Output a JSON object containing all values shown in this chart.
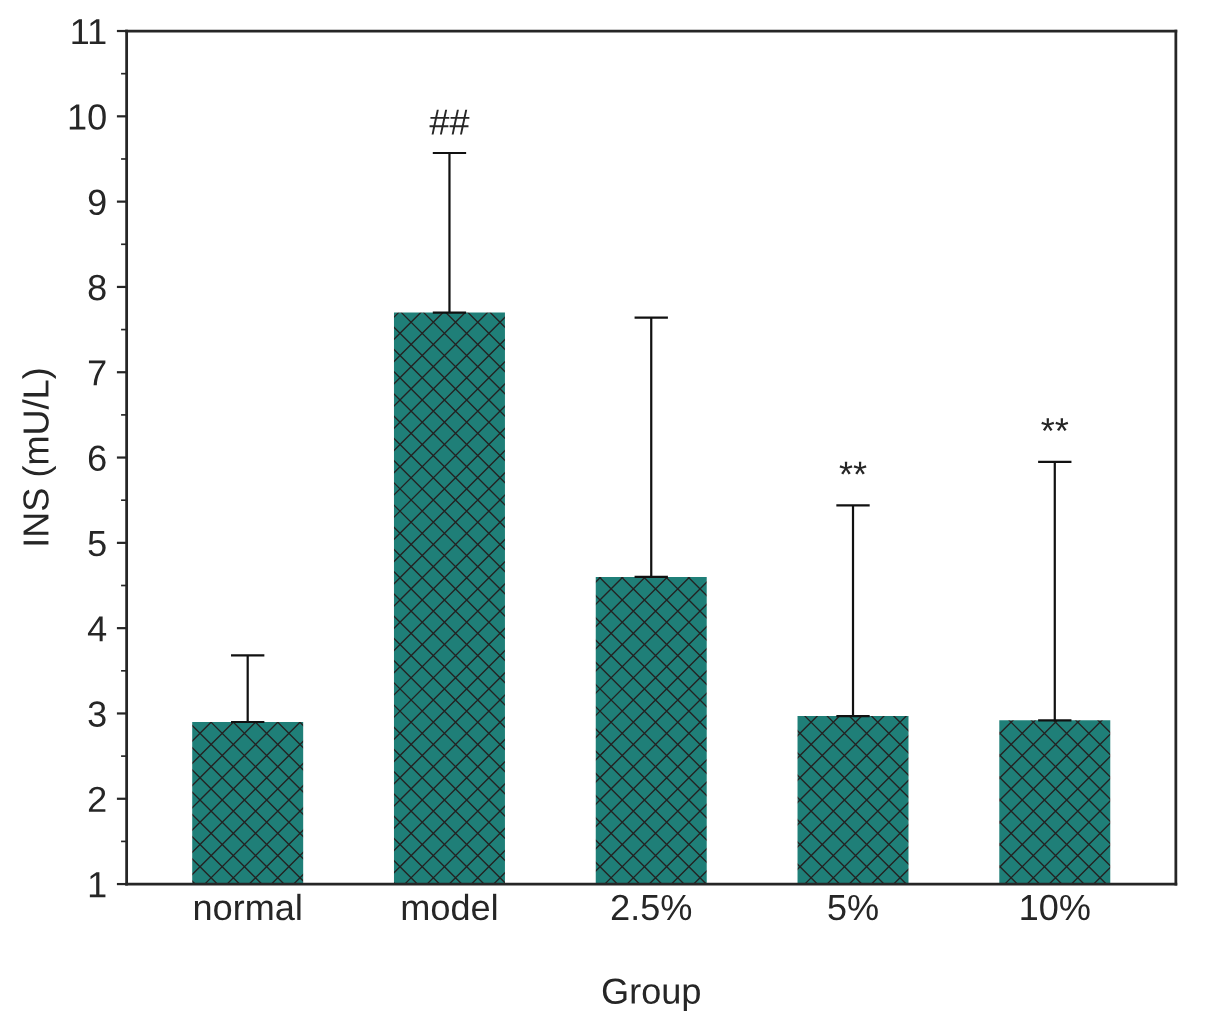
{
  "chart_data": {
    "type": "bar",
    "categories": [
      "normal",
      "model",
      "2.5%",
      "5%",
      "10%"
    ],
    "values": [
      2.9,
      7.7,
      4.6,
      2.97,
      2.92
    ],
    "color": "#1f7f78",
    "errors": [
      [
        2.9,
        3.68
      ],
      [
        7.7,
        9.57
      ],
      [
        4.6,
        7.64
      ],
      [
        2.97,
        5.44
      ],
      [
        2.92,
        5.95
      ]
    ],
    "xlabel": "Group",
    "ylabel": "INS (mU/L)",
    "ylim": [
      1,
      11
    ],
    "yticks": [
      1,
      2,
      3,
      4,
      5,
      6,
      7,
      8,
      9,
      10,
      11
    ],
    "annotations": [
      {
        "text": "##",
        "x": "model",
        "y": 9.57
      },
      {
        "text": "**",
        "x": "5%",
        "y": 5.44
      },
      {
        "text": "**",
        "x": "10%",
        "y": 5.95
      }
    ],
    "grid": false
  }
}
